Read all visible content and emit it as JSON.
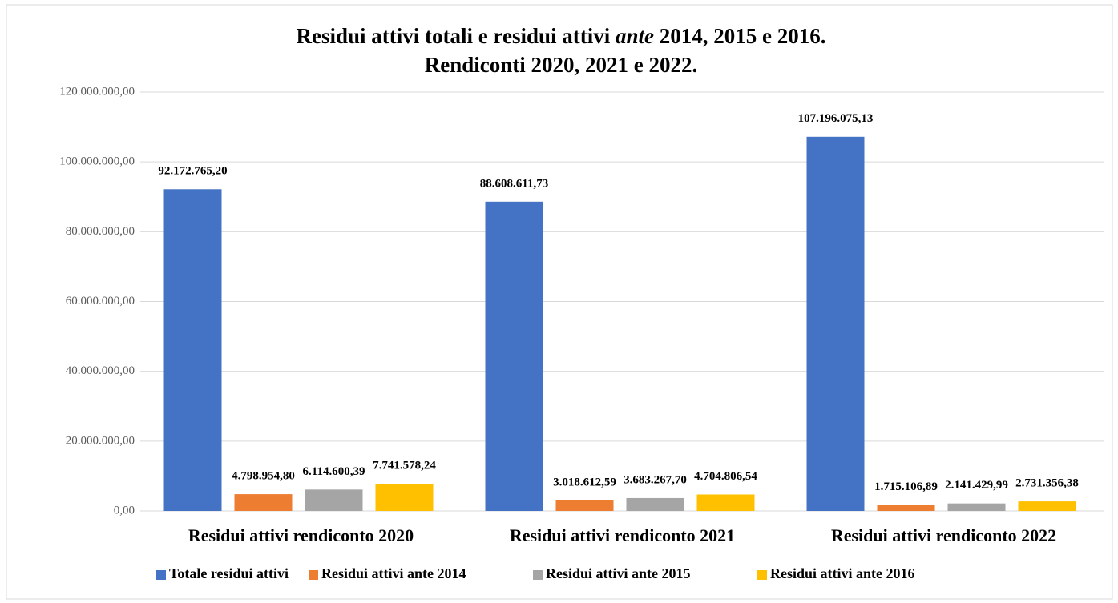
{
  "chart_data": {
    "type": "bar",
    "title": [
      [
        "Residui attivi totali e residui attivi",
        "ante",
        "2014, 2015 e 2016."
      ],
      "Rendiconti 2020, 2021 e 2022."
    ],
    "categories": [
      "Residui attivi rendiconto 2020",
      "Residui attivi rendiconto 2021",
      "Residui attivi rendiconto 2022"
    ],
    "series": [
      {
        "name": "Totale residui attivi",
        "color": "#4472c4",
        "values": [
          92172765.2,
          88608611.73,
          107196075.13
        ],
        "value_labels": [
          "92.172.765,20",
          "88.608.611,73",
          "107.196.075,13"
        ]
      },
      {
        "name": "Residui attivi ante 2014",
        "color": "#ed7d31",
        "values": [
          4798954.8,
          3018612.59,
          1715106.89
        ],
        "value_labels": [
          "4.798.954,80",
          "3.018.612,59",
          "1.715.106,89"
        ]
      },
      {
        "name": "Residui attivi ante 2015",
        "color": "#a5a5a5",
        "values": [
          6114600.39,
          3683267.7,
          2141429.99
        ],
        "value_labels": [
          "6.114.600,39",
          "3.683.267,70",
          "2.141.429,99"
        ]
      },
      {
        "name": "Residui attivi ante 2016",
        "color": "#ffc000",
        "values": [
          7741578.24,
          4704806.54,
          2731356.38
        ],
        "value_labels": [
          "7.741.578,24",
          "4.704.806,54",
          "2.731.356,38"
        ]
      }
    ],
    "ylim": [
      0,
      120000000
    ],
    "yticks": [
      {
        "value": 0,
        "label": "0,00"
      },
      {
        "value": 20000000,
        "label": "20.000.000,00"
      },
      {
        "value": 40000000,
        "label": "40.000.000,00"
      },
      {
        "value": 60000000,
        "label": "60.000.000,00"
      },
      {
        "value": 80000000,
        "label": "80.000.000,00"
      },
      {
        "value": 100000000,
        "label": "100.000.000,00"
      },
      {
        "value": 120000000,
        "label": "120.000.000,00"
      }
    ],
    "grid": true,
    "legend": "bottom"
  }
}
